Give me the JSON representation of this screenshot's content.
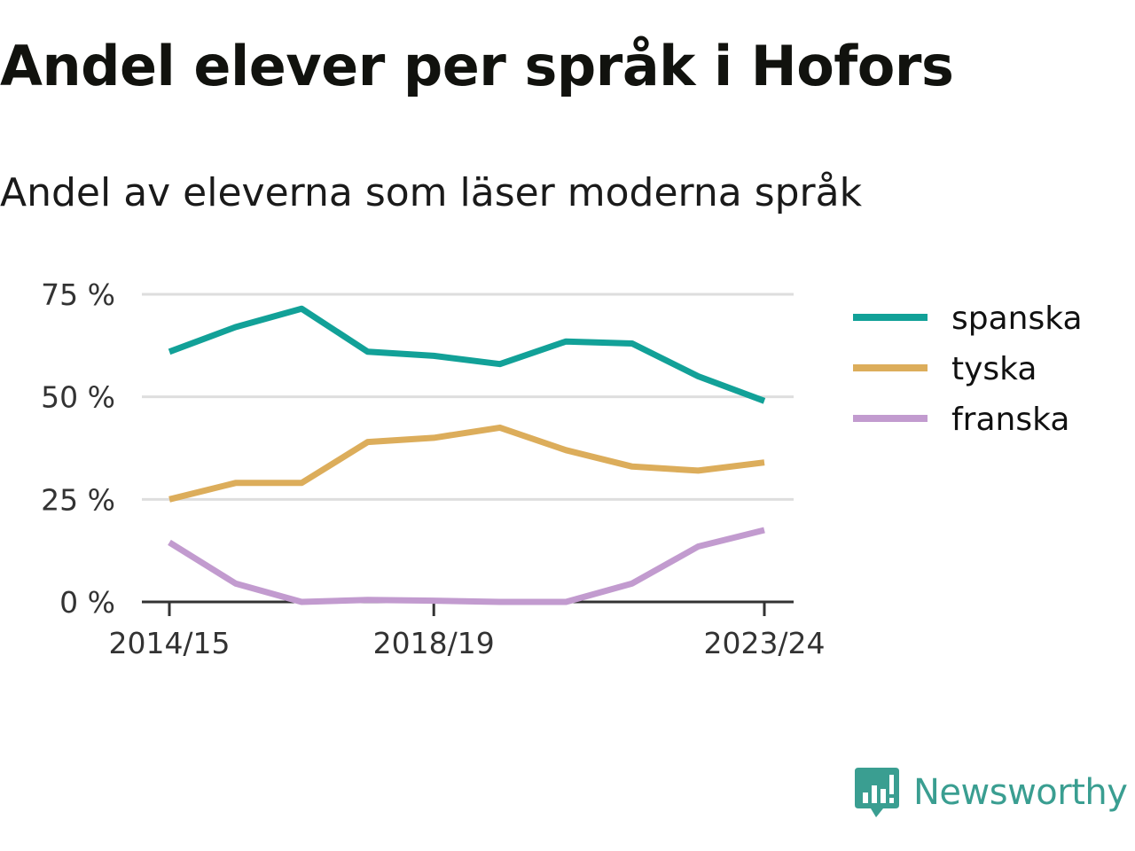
{
  "title": "Andel elever per språk i Hofors",
  "subtitle": "Andel av eleverna som läser moderna språk",
  "brand": {
    "name": "Newsworthy",
    "icon": "newsworthy-logo-icon",
    "color": "#3a9e91"
  },
  "chart_data": {
    "type": "line",
    "title": "Andel elever per språk i Hofors",
    "subtitle": "Andel av eleverna som läser moderna språk",
    "xlabel": "",
    "ylabel": "",
    "x": [
      "2014/15",
      "2015/16",
      "2016/17",
      "2017/18",
      "2018/19",
      "2019/20",
      "2020/21",
      "2021/22",
      "2022/23",
      "2023/24"
    ],
    "x_tick_labels": [
      "2014/15",
      "2018/19",
      "2023/24"
    ],
    "y_ticks": [
      0,
      25,
      50,
      75
    ],
    "y_tick_labels": [
      "0 %",
      "25 %",
      "50 %",
      "75 %"
    ],
    "ylim": [
      0,
      75
    ],
    "grid": true,
    "legend_position": "right",
    "series": [
      {
        "name": "spanska",
        "color": "#12a198",
        "values": [
          61,
          67,
          71.5,
          61,
          60,
          58,
          63.5,
          63,
          55,
          49
        ]
      },
      {
        "name": "tyska",
        "color": "#dcad5b",
        "values": [
          25,
          29,
          29,
          39,
          40,
          42.5,
          37,
          33,
          32,
          34
        ]
      },
      {
        "name": "franska",
        "color": "#c29bcf",
        "values": [
          14.5,
          4.5,
          0,
          0.5,
          0.3,
          0,
          0,
          4.5,
          13.5,
          17.5
        ]
      }
    ]
  }
}
